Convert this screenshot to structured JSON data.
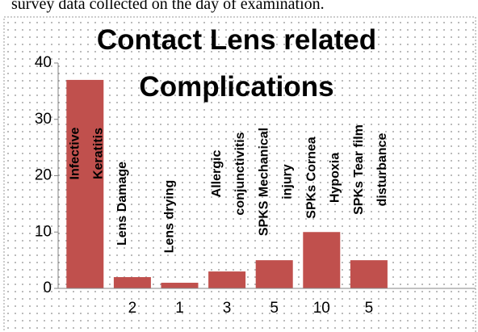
{
  "caption": "survey data collected on the day of examination.",
  "chart_data": {
    "type": "bar",
    "title": "Contact Lens related Complications",
    "categories": [
      "Infective Keratitis",
      "Lens Damage",
      "Lens drying",
      "Allergic conjunctivitis",
      "SPKS Mechanical injury",
      "SPKs Cornea Hypoxia",
      "SPKs Tear film disturbance"
    ],
    "values": [
      37,
      2,
      1,
      3,
      5,
      10,
      5
    ],
    "value_labels": [
      null,
      "2",
      "1",
      "3",
      "5",
      "10",
      "5"
    ],
    "color": "#c0504d",
    "ylim": [
      0,
      40
    ],
    "yticks": [
      0,
      10,
      20,
      30,
      40
    ],
    "grid": false
  }
}
